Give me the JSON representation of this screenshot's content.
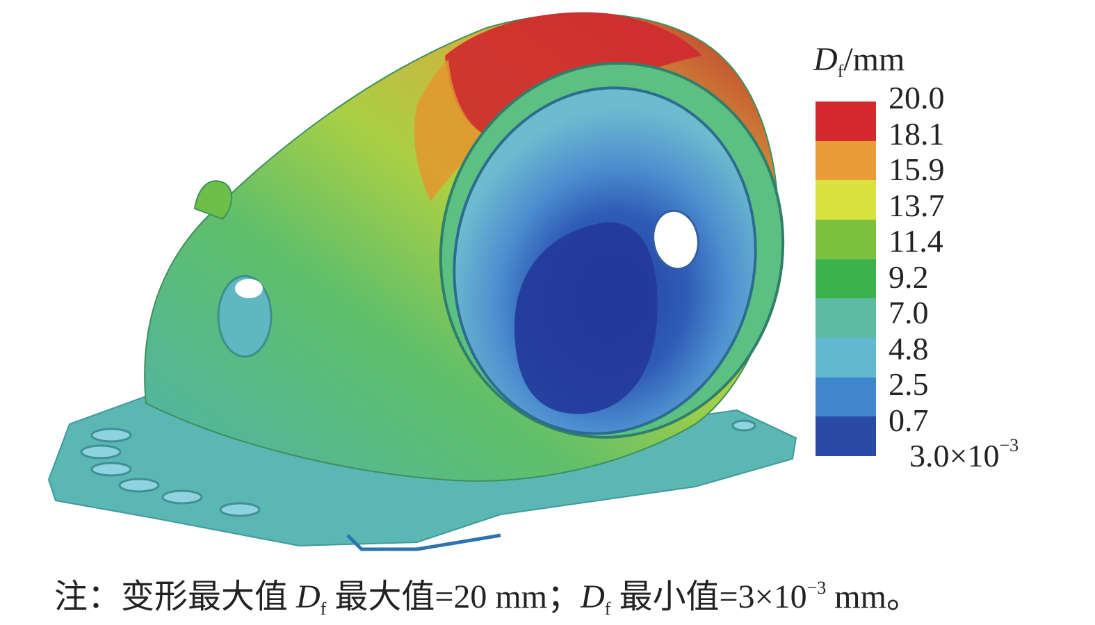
{
  "legend": {
    "title_symbol": "D",
    "title_subscript": "f",
    "title_unit": "/mm",
    "colors": [
      "#d42a2e",
      "#e89b36",
      "#d9e23e",
      "#7cc23f",
      "#3bb34a",
      "#5dbba3",
      "#63b8d1",
      "#3f86cc",
      "#2b4aa3"
    ],
    "labels": [
      "20.0",
      "18.1",
      "15.9",
      "13.7",
      "11.4",
      "9.2",
      "7.0",
      "4.8",
      "2.5",
      "0.7"
    ],
    "last_label_base": "3.0×10",
    "last_label_exp": "−3"
  },
  "note": {
    "prefix": "注：变形最大值 ",
    "sym1": "D",
    "sub1": "f",
    "mid1": " 最大值=20 mm；",
    "sym2": "D",
    "sub2": "f",
    "mid2": " 最小值=3×10",
    "exp": "−3",
    "suffix": " mm。"
  }
}
